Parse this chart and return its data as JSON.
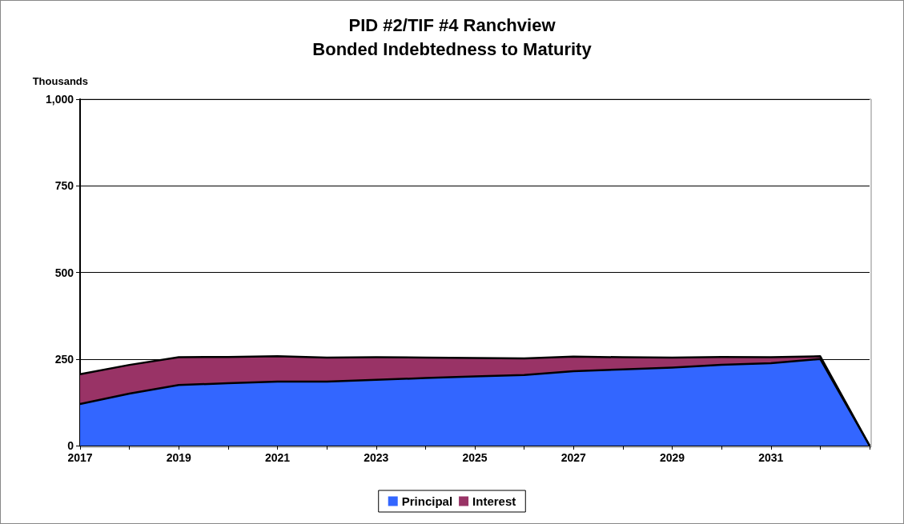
{
  "chart_data": {
    "type": "area",
    "title": "PID #2/TIF #4 Ranchview\nBonded Indebtedness to Maturity",
    "ylabel": "Thousands",
    "categories": [
      "2017",
      null,
      "2019",
      null,
      "2021",
      null,
      "2023",
      null,
      "2025",
      null,
      "2027",
      null,
      "2029",
      null,
      "2031",
      null,
      null
    ],
    "stacked": true,
    "series": [
      {
        "name": "Principal",
        "color": "#3366ff",
        "values": [
          120,
          150,
          175,
          180,
          185,
          185,
          190,
          195,
          200,
          204,
          215,
          220,
          225,
          233,
          238,
          250,
          0
        ]
      },
      {
        "name": "Interest",
        "color": "#993366",
        "values": [
          86,
          83,
          80,
          76,
          73,
          69,
          65,
          59,
          53,
          48,
          42,
          35,
          29,
          23,
          17,
          8,
          0
        ]
      }
    ],
    "ylim": [
      0,
      1000
    ],
    "yticks": [
      0,
      {
        "value": 250,
        "label": "250"
      },
      {
        "value": 500,
        "label": "500"
      },
      {
        "value": 750,
        "label": "750"
      },
      {
        "value": 1000,
        "label": "1,000"
      }
    ],
    "grid": "y",
    "legend": "bottom"
  }
}
